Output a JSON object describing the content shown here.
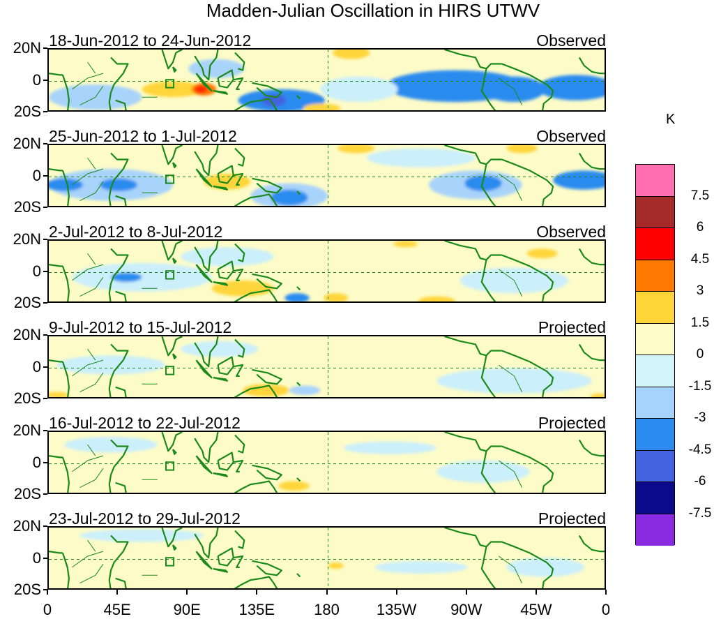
{
  "title": "Madden-Julian Oscillation in HIRS UTWV",
  "unit": "K",
  "panels": [
    {
      "period": "18-Jun-2012 to 24-Jun-2012",
      "status": "Observed"
    },
    {
      "period": "25-Jun-2012 to 1-Jul-2012",
      "status": "Observed"
    },
    {
      "period": "2-Jul-2012 to 8-Jul-2012",
      "status": "Observed"
    },
    {
      "period": "9-Jul-2012 to 15-Jul-2012",
      "status": "Projected"
    },
    {
      "period": "16-Jul-2012 to 22-Jul-2012",
      "status": "Projected"
    },
    {
      "period": "23-Jul-2012 to 29-Jul-2012",
      "status": "Projected"
    }
  ],
  "y_labels": [
    "20N",
    "0",
    "20S"
  ],
  "x_labels": [
    "0",
    "45E",
    "90E",
    "135E",
    "180",
    "135W",
    "90W",
    "45W",
    "0"
  ],
  "colorbar": {
    "labels": [
      "7.5",
      "6",
      "4.5",
      "3",
      "1.5",
      "0",
      "-1.5",
      "-3",
      "-4.5",
      "-6",
      "-7.5"
    ],
    "colors": [
      "#ff6fb0",
      "#a52a2a",
      "#ff0000",
      "#ff7800",
      "#ffd53a",
      "#fefcc8",
      "#d1f5fb",
      "#a6d3fb",
      "#2b8bef",
      "#4363e0",
      "#0a0a8a",
      "#8a2be2"
    ]
  },
  "colors": {
    "coast": "#1b8a1b",
    "neutral": "#fdfcc8",
    "light_blue": "#cbeffb",
    "med_blue": "#a8d3fa",
    "blue": "#2b8bef",
    "dark_blue": "#4363e0",
    "purple": "#8a2be2",
    "yellow": "#ffd53a",
    "orange": "#ff7800",
    "red": "#ff2a00"
  },
  "anomaly_blobs": [
    [
      {
        "lon": 150,
        "lat": -12,
        "rlon": 28,
        "rlat": 7,
        "c": "blue"
      },
      {
        "lon": 145,
        "lat": -12,
        "rlon": 8,
        "rlat": 4,
        "c": "dark_blue"
      },
      {
        "lon": 262,
        "lat": -3,
        "rlon": 45,
        "rlat": 10,
        "c": "blue"
      },
      {
        "lon": 300,
        "lat": -5,
        "rlon": 20,
        "rlat": 8,
        "c": "blue"
      },
      {
        "lon": 340,
        "lat": -4,
        "rlon": 25,
        "rlat": 8,
        "c": "blue"
      },
      {
        "lon": 108,
        "lat": 8,
        "rlon": 18,
        "rlat": 6,
        "c": "med_blue"
      },
      {
        "lon": 30,
        "lat": -10,
        "rlon": 30,
        "rlat": 8,
        "c": "med_blue"
      },
      {
        "lon": 200,
        "lat": -5,
        "rlon": 25,
        "rlat": 8,
        "c": "light_blue"
      },
      {
        "lon": 80,
        "lat": -5,
        "rlon": 20,
        "rlat": 5,
        "c": "yellow"
      },
      {
        "lon": 100,
        "lat": -5,
        "rlon": 8,
        "rlat": 4,
        "c": "orange"
      },
      {
        "lon": 98,
        "lat": -5,
        "rlon": 4,
        "rlat": 2.5,
        "c": "red"
      },
      {
        "lon": 176,
        "lat": -17,
        "rlon": 12,
        "rlat": 3,
        "c": "yellow"
      },
      {
        "lon": 195,
        "lat": 18,
        "rlon": 12,
        "rlat": 4,
        "c": "yellow"
      }
    ],
    [
      {
        "lon": 40,
        "lat": -5,
        "rlon": 40,
        "rlat": 10,
        "c": "med_blue"
      },
      {
        "lon": 10,
        "lat": -5,
        "rlon": 12,
        "rlat": 4,
        "c": "blue"
      },
      {
        "lon": 45,
        "lat": -5,
        "rlon": 12,
        "rlat": 4,
        "c": "blue"
      },
      {
        "lon": 155,
        "lat": -12,
        "rlon": 25,
        "rlat": 8,
        "c": "med_blue"
      },
      {
        "lon": 155,
        "lat": -13,
        "rlon": 12,
        "rlat": 5,
        "c": "blue"
      },
      {
        "lon": 275,
        "lat": -5,
        "rlon": 30,
        "rlat": 9,
        "c": "med_blue"
      },
      {
        "lon": 280,
        "lat": -4,
        "rlon": 12,
        "rlat": 5,
        "c": "blue"
      },
      {
        "lon": 345,
        "lat": -2,
        "rlon": 20,
        "rlat": 6,
        "c": "blue"
      },
      {
        "lon": 240,
        "lat": 12,
        "rlon": 35,
        "rlat": 6,
        "c": "light_blue"
      },
      {
        "lon": 115,
        "lat": -3,
        "rlon": 15,
        "rlat": 5,
        "c": "yellow"
      },
      {
        "lon": 198,
        "lat": 18,
        "rlon": 12,
        "rlat": 3,
        "c": "yellow"
      },
      {
        "lon": 305,
        "lat": 18,
        "rlon": 10,
        "rlat": 3,
        "c": "yellow"
      }
    ],
    [
      {
        "lon": 60,
        "lat": -3,
        "rlon": 45,
        "rlat": 9,
        "c": "light_blue"
      },
      {
        "lon": 50,
        "lat": -3,
        "rlon": 10,
        "rlat": 3,
        "c": "blue"
      },
      {
        "lon": 160,
        "lat": -16,
        "rlon": 8,
        "rlat": 3,
        "c": "blue"
      },
      {
        "lon": 115,
        "lat": 10,
        "rlon": 30,
        "rlat": 6,
        "c": "light_blue"
      },
      {
        "lon": 300,
        "lat": -5,
        "rlon": 35,
        "rlat": 8,
        "c": "light_blue"
      },
      {
        "lon": 125,
        "lat": -10,
        "rlon": 20,
        "rlat": 5,
        "c": "yellow"
      },
      {
        "lon": 185,
        "lat": -16,
        "rlon": 8,
        "rlat": 3,
        "c": "yellow"
      },
      {
        "lon": 250,
        "lat": -18,
        "rlon": 12,
        "rlat": 3,
        "c": "yellow"
      },
      {
        "lon": 318,
        "lat": 12,
        "rlon": 10,
        "rlat": 3,
        "c": "yellow"
      },
      {
        "lon": 230,
        "lat": 18,
        "rlon": 8,
        "rlat": 2,
        "c": "yellow"
      }
    ],
    [
      {
        "lon": 40,
        "lat": 2,
        "rlon": 35,
        "rlat": 6,
        "c": "light_blue"
      },
      {
        "lon": 110,
        "lat": 12,
        "rlon": 25,
        "rlat": 5,
        "c": "light_blue"
      },
      {
        "lon": 165,
        "lat": -14,
        "rlon": 10,
        "rlat": 3,
        "c": "med_blue"
      },
      {
        "lon": 300,
        "lat": -8,
        "rlon": 50,
        "rlat": 8,
        "c": "light_blue"
      },
      {
        "lon": 140,
        "lat": -14,
        "rlon": 15,
        "rlat": 4,
        "c": "yellow"
      },
      {
        "lon": 5,
        "lat": -17,
        "rlon": 8,
        "rlat": 2,
        "c": "yellow"
      },
      {
        "lon": 355,
        "lat": -18,
        "rlon": 6,
        "rlat": 2,
        "c": "yellow"
      }
    ],
    [
      {
        "lon": 40,
        "lat": 12,
        "rlon": 30,
        "rlat": 5,
        "c": "light_blue"
      },
      {
        "lon": 280,
        "lat": -5,
        "rlon": 30,
        "rlat": 7,
        "c": "light_blue"
      },
      {
        "lon": 220,
        "lat": 10,
        "rlon": 30,
        "rlat": 4,
        "c": "light_blue"
      },
      {
        "lon": 158,
        "lat": -14,
        "rlon": 10,
        "rlat": 3,
        "c": "yellow"
      }
    ],
    [
      {
        "lon": 60,
        "lat": 15,
        "rlon": 40,
        "rlat": 4,
        "c": "light_blue"
      },
      {
        "lon": 320,
        "lat": -5,
        "rlon": 25,
        "rlat": 6,
        "c": "light_blue"
      },
      {
        "lon": 240,
        "lat": -5,
        "rlon": 30,
        "rlat": 4,
        "c": "light_blue"
      },
      {
        "lon": 185,
        "lat": -4,
        "rlon": 5,
        "rlat": 2,
        "c": "yellow"
      }
    ]
  ]
}
